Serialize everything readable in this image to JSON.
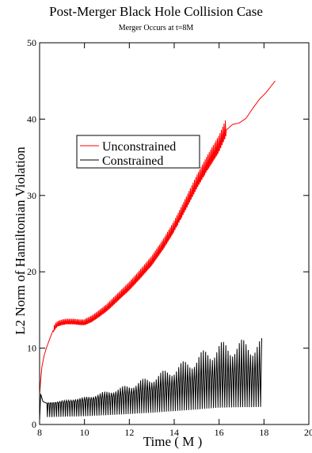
{
  "chart_data": {
    "type": "line",
    "title": "Post-Merger Black Hole Collision Case",
    "subtitle": "Merger Occurs at t=8M",
    "xlabel": "Time ( M )",
    "ylabel": "L2 Norm of Hamiltonian Violation",
    "xlim": [
      8,
      20
    ],
    "ylim": [
      0,
      50
    ],
    "xticks": [
      8,
      10,
      12,
      14,
      16,
      18,
      20
    ],
    "yticks": [
      0,
      10,
      20,
      30,
      40,
      50
    ],
    "grid": false,
    "legend_position": "upper-left",
    "series": [
      {
        "name": "Unconstrained",
        "color": "#ff0000",
        "x": [
          8.0,
          8.05,
          8.1,
          8.2,
          8.3,
          8.4,
          8.5,
          8.6,
          8.7,
          8.8,
          9.0,
          9.2,
          9.5,
          9.8,
          10.0,
          10.3,
          10.6,
          11.0,
          11.5,
          12.0,
          12.5,
          13.0,
          13.5,
          14.0,
          14.5,
          15.0,
          15.5,
          16.0,
          16.3,
          16.6,
          16.9,
          17.2,
          17.5,
          17.8,
          18.1,
          18.5
        ],
        "y": [
          4.0,
          5.8,
          7.5,
          9.0,
          10.0,
          10.8,
          11.6,
          12.3,
          12.8,
          13.1,
          13.3,
          13.4,
          13.4,
          13.3,
          13.3,
          13.7,
          14.3,
          15.2,
          16.6,
          18.0,
          19.6,
          21.3,
          23.4,
          25.8,
          28.6,
          31.5,
          34.1,
          36.5,
          38.5,
          39.3,
          39.5,
          40.1,
          41.4,
          42.6,
          43.5,
          45.0
        ],
        "oscillation": "sawtooth spikes of about 1 to 1.5 around the curve between t=9 and t=16"
      },
      {
        "name": "Constrained",
        "color": "#000000",
        "x": [
          8.0,
          8.05,
          8.15,
          8.3,
          8.6,
          9.0,
          9.5,
          10.0,
          10.5,
          11.0,
          11.5,
          12.0,
          12.5,
          13.0,
          13.5,
          14.0,
          14.5,
          15.0,
          15.5,
          16.0,
          16.5,
          17.0,
          17.5,
          17.9
        ],
        "y": [
          0.5,
          4.0,
          3.0,
          2.8,
          2.8,
          2.9,
          3.0,
          3.1,
          3.3,
          3.5,
          3.7,
          3.9,
          4.2,
          4.4,
          4.7,
          5.0,
          5.3,
          5.6,
          6.0,
          6.3,
          6.4,
          6.5,
          6.5,
          6.6
        ],
        "oscillation": "dense spikes from about 0.8 up to about twice the baseline (peaks near 10 around t=15.5 to 17.9)"
      }
    ]
  }
}
